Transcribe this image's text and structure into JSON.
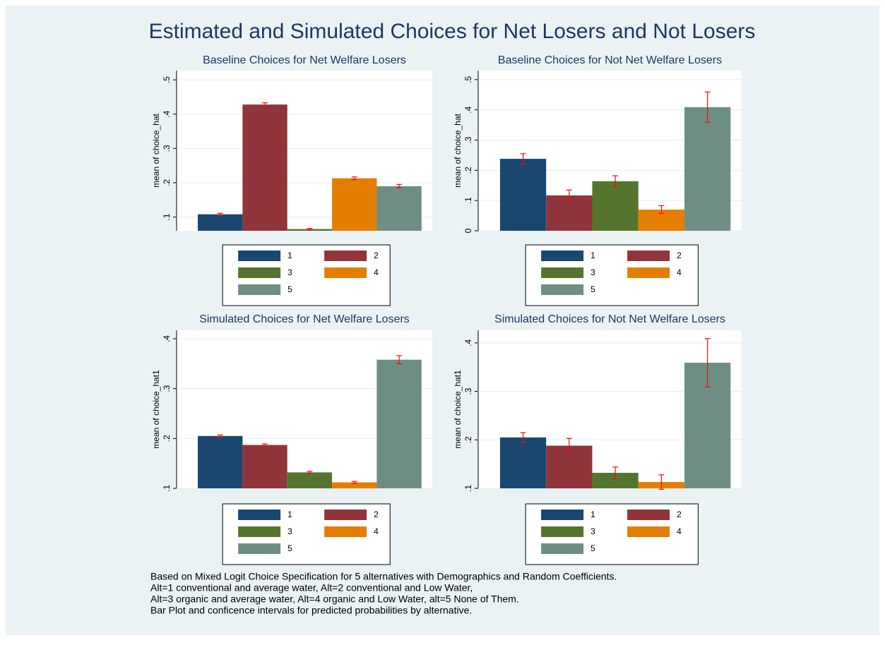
{
  "title": "Estimated and Simulated Choices for Net Losers and Not Losers",
  "notes": [
    "Based on Mixed Logit Choice Specification for 5 alternatives with Demographics and Random Coefficients.",
    "Alt=1 conventional and average water, Alt=2 conventional and Low Water,",
    "Alt=3 organic and average water, Alt=4 organic and Low Water, alt=5 None of Them.",
    "Bar Plot and conficence intervals for predicted probabilities by alternative."
  ],
  "chart_data": [
    {
      "type": "bar",
      "title": "Baseline Choices for Net Welfare Losers",
      "y_label": "mean of choice_hat",
      "ylim": [
        0.06,
        0.527
      ],
      "yticks": [
        {
          "value": 0.1,
          "label": ".1"
        },
        {
          "value": 0.2,
          "label": ".2"
        },
        {
          "value": 0.3,
          "label": ".3"
        },
        {
          "value": 0.4,
          "label": ".4"
        },
        {
          "value": 0.5,
          "label": ".5"
        }
      ],
      "grid": true,
      "series": [
        {
          "name": "1",
          "color": "#1a476f",
          "values": [
            0.108
          ],
          "errors": [
            0.003
          ]
        },
        {
          "name": "2",
          "color": "#90353b",
          "values": [
            0.428
          ],
          "errors": [
            0.005
          ]
        },
        {
          "name": "3",
          "color": "#55752f",
          "values": [
            0.065
          ],
          "errors": [
            0.002
          ]
        },
        {
          "name": "4",
          "color": "#e37e00",
          "values": [
            0.213
          ],
          "errors": [
            0.004
          ]
        },
        {
          "name": "5",
          "color": "#6e8e84",
          "values": [
            0.19
          ],
          "errors": [
            0.005
          ]
        }
      ]
    },
    {
      "type": "bar",
      "title": "Baseline Choices for Not Net Welfare Losers",
      "y_label": "mean of choice_hat",
      "ylim": [
        0,
        0.53
      ],
      "yticks": [
        0,
        {
          "value": 0.1,
          "label": ".1"
        },
        {
          "value": 0.2,
          "label": ".2"
        },
        {
          "value": 0.3,
          "label": ".3"
        },
        {
          "value": 0.4,
          "label": ".4"
        },
        {
          "value": 0.5,
          "label": ".5"
        }
      ],
      "grid": true,
      "series": [
        {
          "name": "1",
          "color": "#1a476f",
          "values": [
            0.238
          ],
          "errors": [
            0.017
          ]
        },
        {
          "name": "2",
          "color": "#90353b",
          "values": [
            0.117
          ],
          "errors": [
            0.018
          ]
        },
        {
          "name": "3",
          "color": "#55752f",
          "values": [
            0.164
          ],
          "errors": [
            0.018
          ]
        },
        {
          "name": "4",
          "color": "#e37e00",
          "values": [
            0.07
          ],
          "errors": [
            0.013
          ]
        },
        {
          "name": "5",
          "color": "#6e8e84",
          "values": [
            0.409
          ],
          "errors": [
            0.05
          ]
        }
      ]
    },
    {
      "type": "bar",
      "title": "Simulated Choices for Net Welfare Losers",
      "y_label": "mean of choice_hat1",
      "ylim": [
        0.1,
        0.417
      ],
      "yticks": [
        {
          "value": 0.1,
          "label": ".1"
        },
        {
          "value": 0.2,
          "label": ".2"
        },
        {
          "value": 0.3,
          "label": ".3"
        },
        {
          "value": 0.4,
          "label": ".4"
        }
      ],
      "grid": true,
      "series": [
        {
          "name": "1",
          "color": "#1a476f",
          "values": [
            0.205
          ],
          "errors": [
            0.002
          ]
        },
        {
          "name": "2",
          "color": "#90353b",
          "values": [
            0.187
          ],
          "errors": [
            0.002
          ]
        },
        {
          "name": "3",
          "color": "#55752f",
          "values": [
            0.132
          ],
          "errors": [
            0.002
          ]
        },
        {
          "name": "4",
          "color": "#e37e00",
          "values": [
            0.112
          ],
          "errors": [
            0.002
          ]
        },
        {
          "name": "5",
          "color": "#6e8e84",
          "values": [
            0.358
          ],
          "errors": [
            0.008
          ]
        }
      ]
    },
    {
      "type": "bar",
      "title": "Simulated Choices for Not Net Welfare Losers",
      "y_label": "mean of choice_hat1",
      "ylim": [
        0.1,
        0.426
      ],
      "yticks": [
        {
          "value": 0.1,
          "label": ".1"
        },
        {
          "value": 0.2,
          "label": ".2"
        },
        {
          "value": 0.3,
          "label": ".3"
        },
        {
          "value": 0.4,
          "label": ".4"
        }
      ],
      "grid": true,
      "series": [
        {
          "name": "1",
          "color": "#1a476f",
          "values": [
            0.205
          ],
          "errors": [
            0.01
          ]
        },
        {
          "name": "2",
          "color": "#90353b",
          "values": [
            0.188
          ],
          "errors": [
            0.015
          ]
        },
        {
          "name": "3",
          "color": "#55752f",
          "values": [
            0.132
          ],
          "errors": [
            0.012
          ]
        },
        {
          "name": "4",
          "color": "#e37e00",
          "values": [
            0.113
          ],
          "errors": [
            0.015
          ]
        },
        {
          "name": "5",
          "color": "#6e8e84",
          "values": [
            0.359
          ],
          "errors": [
            0.05
          ]
        }
      ]
    }
  ]
}
